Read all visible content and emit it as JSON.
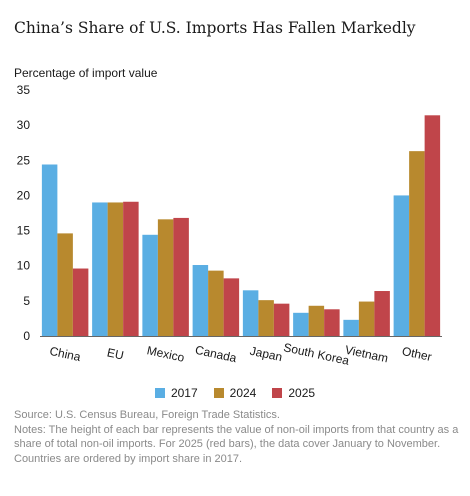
{
  "title": "China’s Share of U.S. Imports Has Fallen Markedly",
  "source": "Source: U.S. Census Bureau, Foreign Trade Statistics.",
  "notes": "Notes: The height of each bar represents the value of non-oil imports from that country as a share of total non-oil imports. For 2025 (red bars), the data cover January to November. Countries are ordered by import share in 2017.",
  "chart_data": {
    "type": "bar",
    "ylabel": "Percentage of import value",
    "ylim": [
      0,
      35
    ],
    "yticks": [
      0,
      5,
      10,
      15,
      20,
      25,
      30,
      35
    ],
    "grid": false,
    "legend_position": "bottom",
    "categories": [
      "China",
      "EU",
      "Mexico",
      "Canada",
      "Japan",
      "South Korea",
      "Vietnam",
      "Other"
    ],
    "series": [
      {
        "name": "2017",
        "color": "#5aaee3",
        "values": [
          24.4,
          19.0,
          14.4,
          10.1,
          6.5,
          3.3,
          2.3,
          20.0
        ]
      },
      {
        "name": "2024",
        "color": "#b8892e",
        "values": [
          14.6,
          19.0,
          16.6,
          9.3,
          5.1,
          4.3,
          4.9,
          26.3
        ]
      },
      {
        "name": "2025",
        "color": "#c0454a",
        "values": [
          9.6,
          19.1,
          16.8,
          8.2,
          4.6,
          3.8,
          6.4,
          31.4
        ]
      }
    ]
  }
}
